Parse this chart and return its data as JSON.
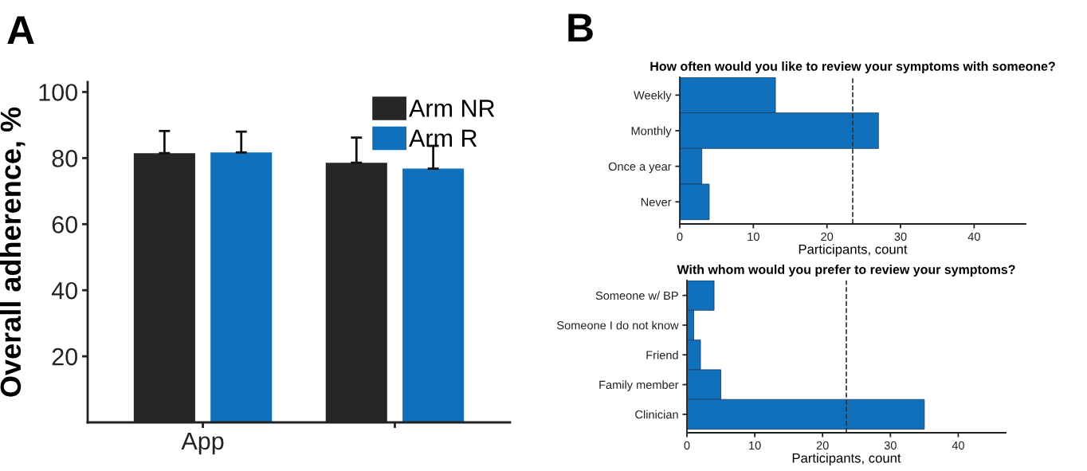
{
  "chart_data": [
    {
      "type": "bar",
      "ylabel": "Overall adherence, %",
      "categories": [
        "App",
        null
      ],
      "series": [
        {
          "name": "Arm NR",
          "color": "#262626",
          "values": [
            81.5,
            78.6
          ],
          "errors": [
            [
              81.5,
              88.2
            ],
            [
              78.6,
              86.2
            ]
          ]
        },
        {
          "name": "Arm R",
          "color": "#1170bb",
          "values": [
            81.7,
            76.8
          ],
          "errors": [
            [
              81.7,
              88.0
            ],
            [
              76.8,
              83.7
            ]
          ]
        }
      ],
      "ylim": [
        0,
        103
      ],
      "yticks": [
        20,
        40,
        60,
        80,
        100
      ],
      "legend": "top right",
      "annotations": [
        "A"
      ]
    },
    {
      "type": "bar",
      "orientation": "horizontal",
      "title": "How often would you like to review your symptoms with someone?",
      "xlabel": "Participants, count",
      "categories": [
        "Weekly",
        "Monthly",
        "Once a year",
        "Never"
      ],
      "values": [
        13,
        27,
        3,
        4
      ],
      "color": "#1170bb",
      "xlim": [
        0,
        47
      ],
      "xticks": [
        0,
        10,
        20,
        30,
        40
      ],
      "ref_lines": [
        {
          "axis": "x",
          "value": 23.5,
          "color": "#333333",
          "line_style": "dashed"
        }
      ],
      "annotations": [
        "B"
      ]
    },
    {
      "type": "bar",
      "orientation": "horizontal",
      "title": "With whom would you prefer to review your symptoms?",
      "xlabel": "Participants, count",
      "categories": [
        "Someone w/ BP",
        "Someone I do not know",
        "Friend",
        "Family member",
        "Clinician"
      ],
      "values": [
        4,
        1,
        2,
        5,
        35
      ],
      "color": "#1170bb",
      "xlim": [
        0,
        47
      ],
      "xticks": [
        0,
        10,
        20,
        30,
        40
      ],
      "ref_lines": [
        {
          "axis": "x",
          "value": 23.5,
          "color": "#333333",
          "line_style": "dashed"
        }
      ]
    }
  ]
}
